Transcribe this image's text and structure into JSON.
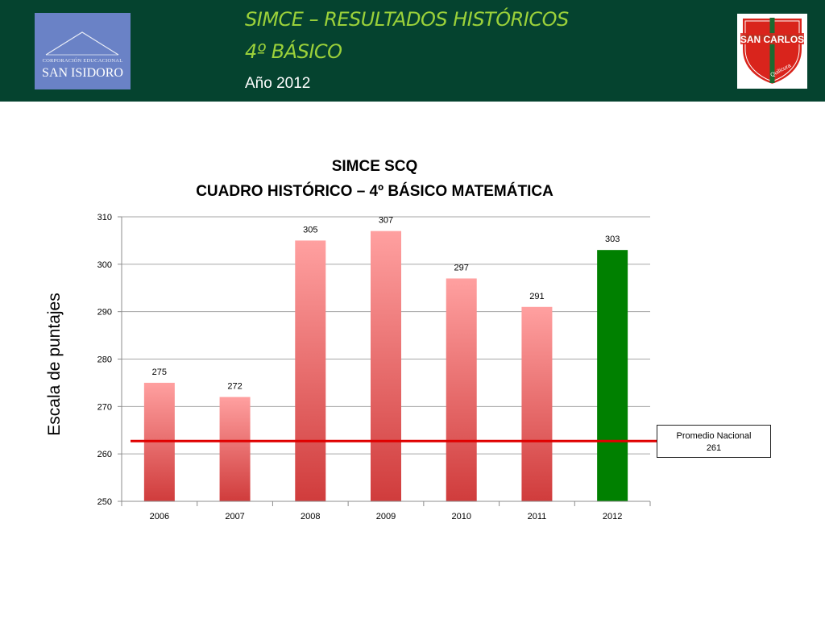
{
  "header": {
    "logo_left_small": "CORPORACIÓN EDUCACIONAL",
    "logo_left_name": "SAN ISIDORO",
    "title_line1": "SIMCE – RESULTADOS HISTÓRICOS",
    "title_line2": "4º BÁSICO",
    "year": "Año 2012",
    "logo_right_name": "SAN CARLOS",
    "logo_right_sub": "Quilicura"
  },
  "colors": {
    "header_bg": "#05432f",
    "title_green": "#9bd13a",
    "bar_top": "#ffa0a0",
    "bar_bottom": "#d03c3c",
    "bar_highlight": "#008000",
    "reference_line": "#e00000"
  },
  "chart_data": {
    "type": "bar",
    "title": "SIMCE SCQ",
    "subtitle": "CUADRO HISTÓRICO – 4º BÁSICO MATEMÁTICA",
    "xlabel": "",
    "ylabel": "Escala de puntajes",
    "categories": [
      "2006",
      "2007",
      "2008",
      "2009",
      "2010",
      "2011",
      "2012"
    ],
    "values": [
      275,
      272,
      305,
      307,
      297,
      291,
      303
    ],
    "highlight_category": "2012",
    "ylim": [
      250,
      310
    ],
    "yticks": [
      250,
      260,
      270,
      280,
      290,
      300,
      310
    ],
    "grid": true,
    "reference_line": {
      "value": 261,
      "label_line1": "Promedio Nacional",
      "label_line2": "261"
    }
  }
}
